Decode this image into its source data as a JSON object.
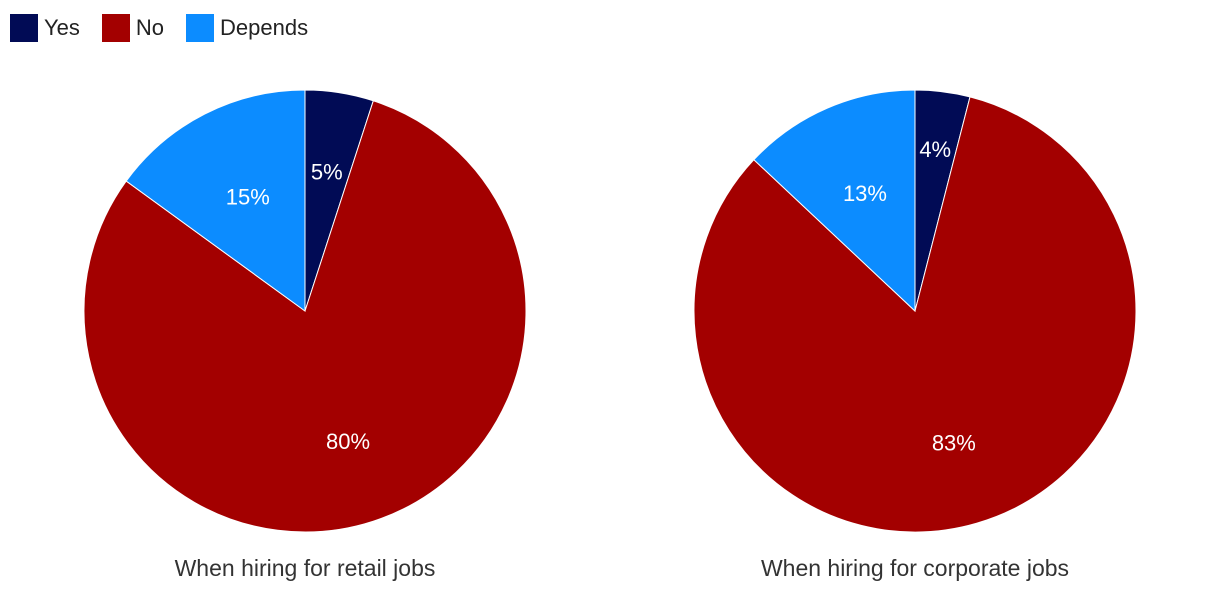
{
  "legend": [
    {
      "label": "Yes",
      "color": "#010b55"
    },
    {
      "label": "No",
      "color": "#a30000"
    },
    {
      "label": "Depends",
      "color": "#0c8cff"
    }
  ],
  "chart_data": [
    {
      "type": "pie",
      "caption": "When hiring for retail jobs",
      "categories": [
        "Yes",
        "No",
        "Depends"
      ],
      "values": [
        5,
        80,
        15
      ],
      "labels": [
        "5%",
        "80%",
        "15%"
      ],
      "colors": [
        "#010b55",
        "#a30000",
        "#0c8cff"
      ],
      "legend_placement": "top-left"
    },
    {
      "type": "pie",
      "caption": "When hiring for corporate jobs",
      "categories": [
        "Yes",
        "No",
        "Depends"
      ],
      "values": [
        4,
        83,
        13
      ],
      "labels": [
        "4%",
        "83%",
        "13%"
      ],
      "colors": [
        "#010b55",
        "#a30000",
        "#0c8cff"
      ],
      "legend_placement": "top-left"
    }
  ]
}
